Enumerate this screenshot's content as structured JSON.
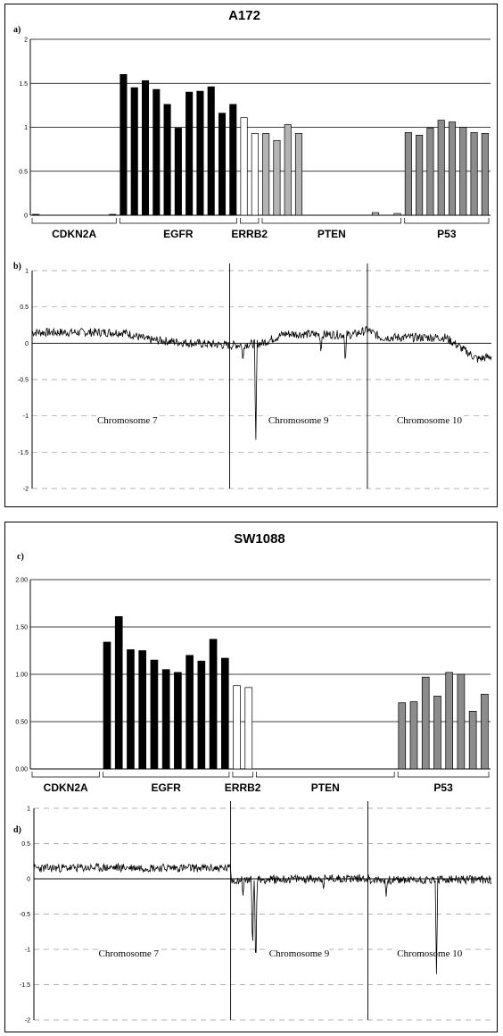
{
  "chart_data": [
    {
      "panel_label": "a)",
      "type": "bar",
      "title": "A172",
      "ylim": [
        0,
        2
      ],
      "yticks": [
        "2",
        "1.5",
        "1",
        "0.5",
        "0"
      ],
      "grid": true,
      "groups": [
        {
          "name": "CDKN2A",
          "color": "#000000",
          "values": [
            0.01,
            0,
            0,
            0,
            0,
            0,
            0,
            0.01
          ]
        },
        {
          "name": "EGFR",
          "color": "#000000",
          "values": [
            1.6,
            1.45,
            1.53,
            1.43,
            1.26,
            0.99,
            1.4,
            1.41,
            1.46,
            1.16,
            1.26
          ]
        },
        {
          "name": "ERRB2",
          "color": "#ffffff",
          "values": [
            1.11,
            0.93
          ]
        },
        {
          "name": "PTEN",
          "color": "#b4b4b4",
          "values": [
            0.93,
            0.85,
            1.03,
            0.93,
            0,
            0,
            0,
            0,
            0,
            0,
            0.03,
            0,
            0.02
          ]
        },
        {
          "name": "P53",
          "color": "#8c8c8c",
          "values": [
            0.94,
            0.91,
            0.99,
            1.08,
            1.06,
            1.0,
            0.94,
            0.93
          ]
        }
      ]
    },
    {
      "panel_label": "b)",
      "type": "line",
      "ylim": [
        -2,
        1
      ],
      "yticks": [
        "1",
        "0.5",
        "0",
        "-0.5",
        "-1",
        "-1.5",
        "-2"
      ],
      "grid": "dashed",
      "regions": [
        {
          "name": "Chromosome 7",
          "from": 0.0,
          "to": 0.43
        },
        {
          "name": "Chromosome 9",
          "from": 0.43,
          "to": 0.73
        },
        {
          "name": "Chromosome 10",
          "from": 0.73,
          "to": 1.0
        }
      ],
      "profile": {
        "baseline": [
          [
            0.0,
            0.15
          ],
          [
            0.2,
            0.15
          ],
          [
            0.25,
            0.05
          ],
          [
            0.35,
            0.0
          ],
          [
            0.43,
            -0.03
          ],
          [
            0.5,
            0.0
          ],
          [
            0.55,
            0.13
          ],
          [
            0.63,
            0.12
          ],
          [
            0.7,
            0.12
          ],
          [
            0.73,
            0.18
          ],
          [
            0.76,
            0.08
          ],
          [
            0.9,
            0.08
          ],
          [
            0.97,
            -0.22
          ],
          [
            1.0,
            -0.18
          ]
        ],
        "dips": [
          [
            0.459,
            -0.25
          ],
          [
            0.487,
            -1.4
          ],
          [
            0.629,
            -0.15
          ],
          [
            0.682,
            -0.3
          ]
        ]
      }
    },
    {
      "panel_label": "c)",
      "type": "bar",
      "title": "SW1088",
      "ylim": [
        0,
        2
      ],
      "yticks": [
        "2.00",
        "1.50",
        "1.00",
        "0.50",
        "0.00"
      ],
      "grid": true,
      "groups": [
        {
          "name": "CDKN2A",
          "color": "#000000",
          "values": [
            0,
            0,
            0,
            0,
            0,
            0
          ]
        },
        {
          "name": "EGFR",
          "color": "#000000",
          "values": [
            1.34,
            1.61,
            1.26,
            1.25,
            1.15,
            1.05,
            1.02,
            1.2,
            1.14,
            1.37,
            1.17
          ]
        },
        {
          "name": "ERRB2",
          "color": "#ffffff",
          "values": [
            0.88,
            0.86
          ]
        },
        {
          "name": "PTEN",
          "color": "#b4b4b4",
          "values": [
            0,
            0,
            0,
            0,
            0,
            0,
            0,
            0,
            0,
            0,
            0,
            0
          ]
        },
        {
          "name": "P53",
          "color": "#8c8c8c",
          "values": [
            0.7,
            0.71,
            0.97,
            0.77,
            1.02,
            1.0,
            0.61,
            0.79
          ]
        }
      ]
    },
    {
      "panel_label": "d)",
      "type": "line",
      "ylim": [
        -2,
        1
      ],
      "yticks": [
        "1",
        "0.5",
        "0",
        "-0.5",
        "-1",
        "-1.5",
        "-2"
      ],
      "grid": "dashed",
      "regions": [
        {
          "name": "Chromosome 7",
          "from": 0.0,
          "to": 0.43
        },
        {
          "name": "Chromosome 9",
          "from": 0.43,
          "to": 0.73
        },
        {
          "name": "Chromosome 10",
          "from": 0.73,
          "to": 1.0
        }
      ],
      "profile": {
        "baseline": [
          [
            0.0,
            0.15
          ],
          [
            0.2,
            0.16
          ],
          [
            0.43,
            0.15
          ],
          [
            0.432,
            -0.02
          ],
          [
            0.6,
            0.0
          ],
          [
            0.73,
            0.01
          ],
          [
            0.735,
            -0.02
          ],
          [
            1.0,
            -0.01
          ]
        ],
        "dips": [
          [
            0.457,
            -0.25
          ],
          [
            0.478,
            -1.1
          ],
          [
            0.485,
            -1.4
          ],
          [
            0.633,
            -0.15
          ],
          [
            0.77,
            -0.25
          ],
          [
            0.88,
            -1.35
          ]
        ]
      }
    }
  ]
}
